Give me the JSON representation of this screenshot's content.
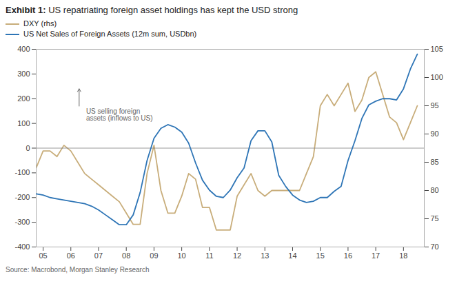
{
  "chart_data": {
    "type": "line",
    "title": "Exhibit 1:",
    "subtitle": "US repatriating foreign asset holdings has kept the USD strong",
    "source": "Source: Macrobond, Morgan Stanley Research",
    "legend": "upper left",
    "grid": false,
    "x": [
      2004.75,
      2005.0,
      2005.25,
      2005.5,
      2005.75,
      2006.0,
      2006.25,
      2006.5,
      2006.75,
      2007.0,
      2007.25,
      2007.5,
      2007.75,
      2008.0,
      2008.25,
      2008.5,
      2008.75,
      2009.0,
      2009.25,
      2009.5,
      2009.75,
      2010.0,
      2010.25,
      2010.5,
      2010.75,
      2011.0,
      2011.25,
      2011.5,
      2011.75,
      2012.0,
      2012.25,
      2012.5,
      2012.75,
      2013.0,
      2013.25,
      2013.5,
      2013.75,
      2014.0,
      2014.25,
      2014.5,
      2014.75,
      2015.0,
      2015.25,
      2015.5,
      2015.75,
      2016.0,
      2016.25,
      2016.5,
      2016.75,
      2017.0,
      2017.25,
      2017.5,
      2017.75,
      2018.0,
      2018.25,
      2018.5
    ],
    "xlim": [
      2004.75,
      2018.75
    ],
    "xticks": [
      {
        "value": 2005,
        "label": "05"
      },
      {
        "value": 2006,
        "label": "06"
      },
      {
        "value": 2007,
        "label": "07"
      },
      {
        "value": 2008,
        "label": "08"
      },
      {
        "value": 2009,
        "label": "09"
      },
      {
        "value": 2010,
        "label": "10"
      },
      {
        "value": 2011,
        "label": "11"
      },
      {
        "value": 2012,
        "label": "12"
      },
      {
        "value": 2013,
        "label": "13"
      },
      {
        "value": 2014,
        "label": "14"
      },
      {
        "value": 2015,
        "label": "15"
      },
      {
        "value": 2016,
        "label": "16"
      },
      {
        "value": 2017,
        "label": "17"
      },
      {
        "value": 2018,
        "label": "18"
      }
    ],
    "ylim": [
      -400,
      400
    ],
    "yticks": [
      -400,
      -300,
      -200,
      -100,
      0,
      100,
      200,
      300,
      400
    ],
    "y2lim": [
      70,
      105
    ],
    "y2ticks": [
      70,
      75,
      80,
      85,
      90,
      95,
      100,
      105
    ],
    "series": [
      {
        "name": "DXY (rhs)",
        "color": "#C8AD7A",
        "axis": "y2",
        "values": [
          84,
          87,
          87,
          86,
          88,
          87,
          85,
          83,
          82,
          81,
          80,
          79,
          78,
          76,
          74,
          74,
          83,
          88,
          80,
          76,
          76,
          79,
          83,
          82,
          77,
          77,
          73,
          73,
          73,
          79,
          81,
          83,
          80,
          79,
          80,
          80,
          80,
          80,
          80,
          83,
          86,
          95,
          97,
          95,
          97,
          99,
          94,
          96,
          100,
          101,
          97,
          93,
          92,
          89,
          92,
          95
        ]
      },
      {
        "name": "US Net Sales of Foreign Assets (12m sum, USDbn)",
        "color": "#2E75B6",
        "axis": "y",
        "values": [
          -185,
          -190,
          -200,
          -205,
          -210,
          -215,
          -220,
          -225,
          -235,
          -250,
          -270,
          -290,
          -310,
          -310,
          -270,
          -180,
          -50,
          40,
          80,
          95,
          85,
          65,
          20,
          -60,
          -130,
          -170,
          -195,
          -200,
          -170,
          -120,
          -80,
          30,
          70,
          70,
          25,
          -110,
          -155,
          -190,
          -210,
          -220,
          -215,
          -200,
          -200,
          -175,
          -155,
          -50,
          30,
          120,
          175,
          190,
          200,
          200,
          195,
          240,
          320,
          380
        ]
      }
    ],
    "annotations": [
      {
        "text": "US selling foreign\nassets (inflows to US)",
        "x": 2006.55,
        "y": 160,
        "arrow": {
          "x": 2006.3,
          "y_from": 170,
          "y_to": 240
        }
      }
    ]
  }
}
